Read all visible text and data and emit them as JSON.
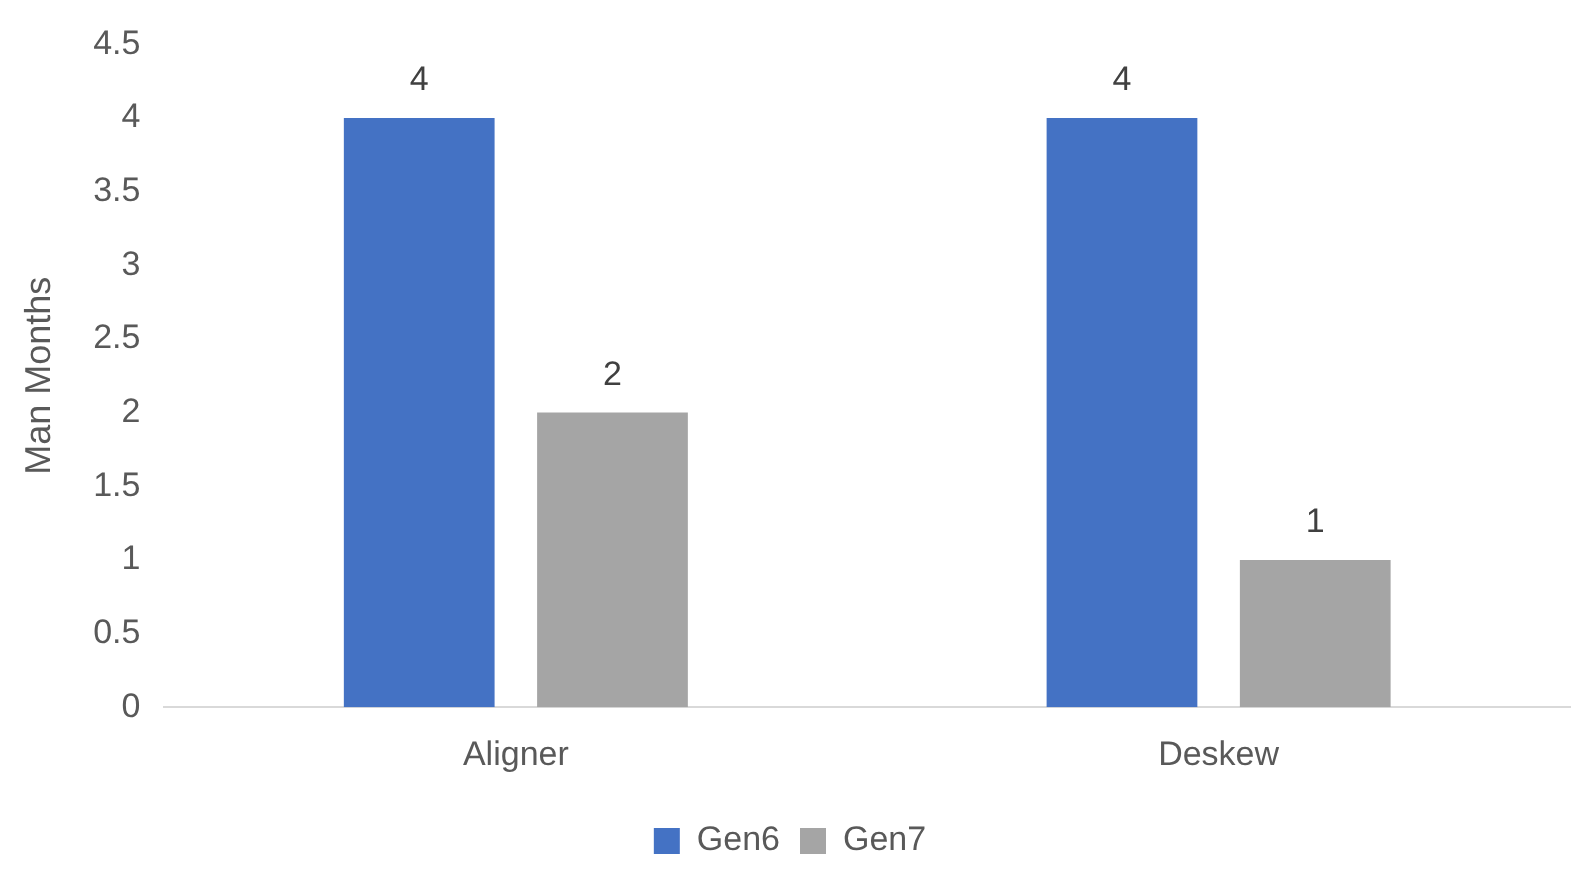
{
  "chart_data": {
    "type": "bar",
    "ylabel": "Man Months",
    "categories": [
      "Aligner",
      "Deskew"
    ],
    "series": [
      {
        "name": "Gen6",
        "color": "#4472c4",
        "values": [
          4,
          4
        ]
      },
      {
        "name": "Gen7",
        "color": "#a5a5a5",
        "values": [
          2,
          1
        ]
      }
    ],
    "ylim": [
      0,
      4.5
    ],
    "yticks": [
      0,
      0.5,
      1,
      1.5,
      2,
      2.5,
      3,
      3.5,
      4,
      4.5
    ],
    "grid": false,
    "legend": "bottom",
    "data_labels": true
  }
}
